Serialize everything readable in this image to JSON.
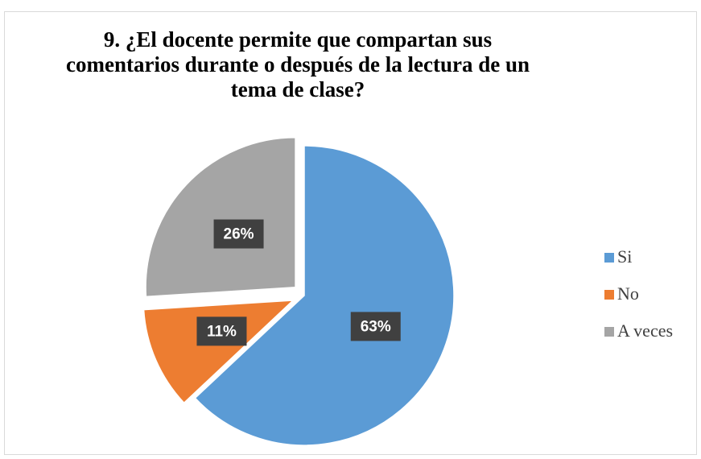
{
  "chart_data": {
    "type": "pie",
    "title": "9. ¿El docente permite que compartan sus comentarios durante o después de la lectura de un tema de clase?",
    "categories": [
      "Si",
      "No",
      "A veces"
    ],
    "values": [
      63,
      11,
      26
    ],
    "value_labels": [
      "63%",
      "11%",
      "26%"
    ],
    "colors": [
      "#5b9bd5",
      "#ed7d31",
      "#a5a5a5"
    ],
    "legend": "right"
  }
}
